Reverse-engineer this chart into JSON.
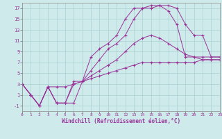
{
  "xlabel": "Windchill (Refroidissement éolien,°C)",
  "bg_color": "#ceeaea",
  "line_color": "#993399",
  "grid_color": "#aacfcf",
  "line1_x": [
    0,
    1,
    2,
    3,
    4,
    5,
    6,
    7,
    8,
    9,
    10,
    11,
    12,
    13,
    14,
    15,
    16,
    17,
    18,
    19,
    20,
    21,
    22,
    23
  ],
  "line1_y": [
    3,
    1,
    -1,
    2.5,
    -0.5,
    -0.5,
    -0.5,
    3.5,
    8.0,
    9.5,
    10.5,
    12.0,
    15.0,
    17.0,
    17.0,
    17.5,
    17.5,
    16.5,
    14.0,
    8.0,
    8.0,
    8.0,
    8.0,
    8.0
  ],
  "line2_x": [
    0,
    1,
    2,
    3,
    4,
    5,
    6,
    7,
    8,
    9,
    10,
    11,
    12,
    13,
    14,
    15,
    16,
    17,
    18,
    19,
    20,
    21,
    22,
    23
  ],
  "line2_y": [
    3,
    1,
    -1,
    2.5,
    -0.5,
    -0.5,
    3.5,
    3.5,
    5.5,
    7.5,
    9.5,
    10.5,
    12.0,
    15.0,
    17.0,
    17.0,
    17.5,
    17.5,
    17.0,
    14.0,
    12.0,
    12.0,
    8.0,
    8.0
  ],
  "line3_x": [
    0,
    1,
    2,
    3,
    4,
    5,
    6,
    7,
    8,
    9,
    10,
    11,
    12,
    13,
    14,
    15,
    16,
    17,
    18,
    19,
    20,
    21,
    22,
    23
  ],
  "line3_y": [
    3,
    1,
    -1,
    2.5,
    -0.5,
    -0.5,
    3.0,
    3.5,
    4.5,
    5.5,
    6.5,
    7.5,
    9.0,
    10.5,
    11.5,
    12.0,
    11.5,
    10.5,
    9.5,
    8.5,
    8.0,
    7.5,
    7.5,
    7.5
  ],
  "line4_x": [
    0,
    1,
    2,
    3,
    4,
    5,
    6,
    7,
    8,
    9,
    10,
    11,
    12,
    13,
    14,
    15,
    16,
    17,
    18,
    19,
    20,
    21,
    22,
    23
  ],
  "line4_y": [
    3,
    1,
    -1,
    2.5,
    2.5,
    2.5,
    3.0,
    3.5,
    4.0,
    4.5,
    5.0,
    5.5,
    6.0,
    6.5,
    7.0,
    7.0,
    7.0,
    7.0,
    7.0,
    7.0,
    7.0,
    7.5,
    7.5,
    7.5
  ],
  "xlim": [
    0,
    23
  ],
  "ylim": [
    -2,
    18
  ],
  "xticks": [
    0,
    1,
    2,
    3,
    4,
    5,
    6,
    7,
    8,
    9,
    10,
    11,
    12,
    13,
    14,
    15,
    16,
    17,
    18,
    19,
    20,
    21,
    22,
    23
  ],
  "yticks": [
    -1,
    1,
    3,
    5,
    7,
    9,
    11,
    13,
    15,
    17
  ]
}
